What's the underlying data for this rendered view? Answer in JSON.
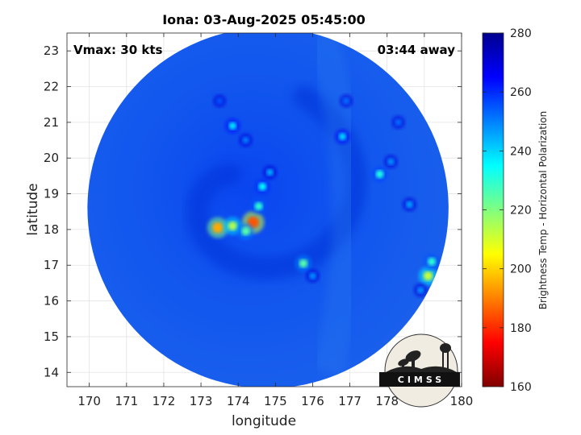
{
  "chart_data": {
    "type": "heatmap",
    "title": "Iona: 03-Aug-2025 05:45:00",
    "xlabel": "longitude",
    "ylabel": "latitude",
    "xlim": [
      169.4,
      180
    ],
    "ylim": [
      13.6,
      23.5
    ],
    "xticks": [
      "170",
      "171",
      "172",
      "173",
      "174",
      "175",
      "176",
      "177",
      "178",
      "179",
      "180"
    ],
    "yticks": [
      "14",
      "15",
      "16",
      "17",
      "18",
      "19",
      "20",
      "21",
      "22",
      "23"
    ],
    "grid": true,
    "annotations": {
      "vmax": "Vmax: 30 kts",
      "time_away": "03:44 away"
    },
    "colorbar": {
      "label": "Brightness Temp - Horizontal Polarization",
      "range": [
        160,
        280
      ],
      "ticks": [
        "160",
        "180",
        "200",
        "220",
        "240",
        "260",
        "280"
      ],
      "colormap": [
        "#800000",
        "#ff0000",
        "#ff8000",
        "#ffff00",
        "#80ff80",
        "#00ffff",
        "#0080ff",
        "#0000ff",
        "#00008f"
      ]
    },
    "swath": {
      "center_lon": 174.8,
      "center_lat": 18.6,
      "radius_deg": 4.85
    },
    "features": [
      {
        "lon": 174.4,
        "lat": 18.2,
        "value": 185
      },
      {
        "lon": 173.45,
        "lat": 18.05,
        "value": 195
      },
      {
        "lon": 173.85,
        "lat": 18.1,
        "value": 215
      },
      {
        "lon": 174.2,
        "lat": 17.95,
        "value": 225
      },
      {
        "lon": 174.55,
        "lat": 18.65,
        "value": 230
      },
      {
        "lon": 174.65,
        "lat": 19.2,
        "value": 235
      },
      {
        "lon": 174.85,
        "lat": 19.6,
        "value": 245
      },
      {
        "lon": 173.85,
        "lat": 20.9,
        "value": 238
      },
      {
        "lon": 174.2,
        "lat": 20.5,
        "value": 250
      },
      {
        "lon": 175.75,
        "lat": 17.05,
        "value": 225
      },
      {
        "lon": 176.0,
        "lat": 16.7,
        "value": 248
      },
      {
        "lon": 176.8,
        "lat": 20.6,
        "value": 240
      },
      {
        "lon": 177.8,
        "lat": 19.55,
        "value": 232
      },
      {
        "lon": 178.1,
        "lat": 19.9,
        "value": 248
      },
      {
        "lon": 178.6,
        "lat": 18.7,
        "value": 246
      },
      {
        "lon": 179.1,
        "lat": 16.7,
        "value": 212
      },
      {
        "lon": 179.2,
        "lat": 17.1,
        "value": 230
      },
      {
        "lon": 178.9,
        "lat": 16.3,
        "value": 248
      },
      {
        "lon": 176.9,
        "lat": 21.6,
        "value": 252
      },
      {
        "lon": 173.5,
        "lat": 21.6,
        "value": 255
      },
      {
        "lon": 178.3,
        "lat": 21.0,
        "value": 252
      }
    ]
  },
  "logo": {
    "text": "CIMSS"
  }
}
